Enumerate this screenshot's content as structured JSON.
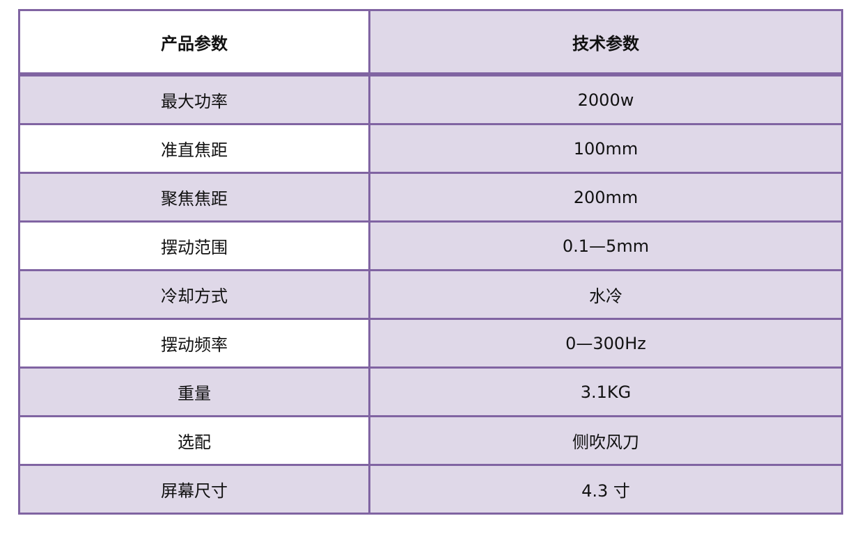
{
  "header": {
    "left": "产品参数",
    "right": "技术参数"
  },
  "rows": [
    {
      "param": "最大功率",
      "value": "2000w"
    },
    {
      "param": "准直焦距",
      "value": "100mm"
    },
    {
      "param": "聚焦焦距",
      "value": "200mm"
    },
    {
      "param": "摆动范围",
      "value": "0.1—5mm"
    },
    {
      "param": "冷却方式",
      "value": "水冷"
    },
    {
      "param": "摆动频率",
      "value": "0—300Hz"
    },
    {
      "param": "重量",
      "value": "3.1KG"
    },
    {
      "param": "选配",
      "value": "侧吹风刀"
    },
    {
      "param": "屏幕尺寸",
      "value": "4.3 寸"
    }
  ],
  "colors": {
    "border": "#8064a2",
    "fill": "#dfd8e8"
  }
}
